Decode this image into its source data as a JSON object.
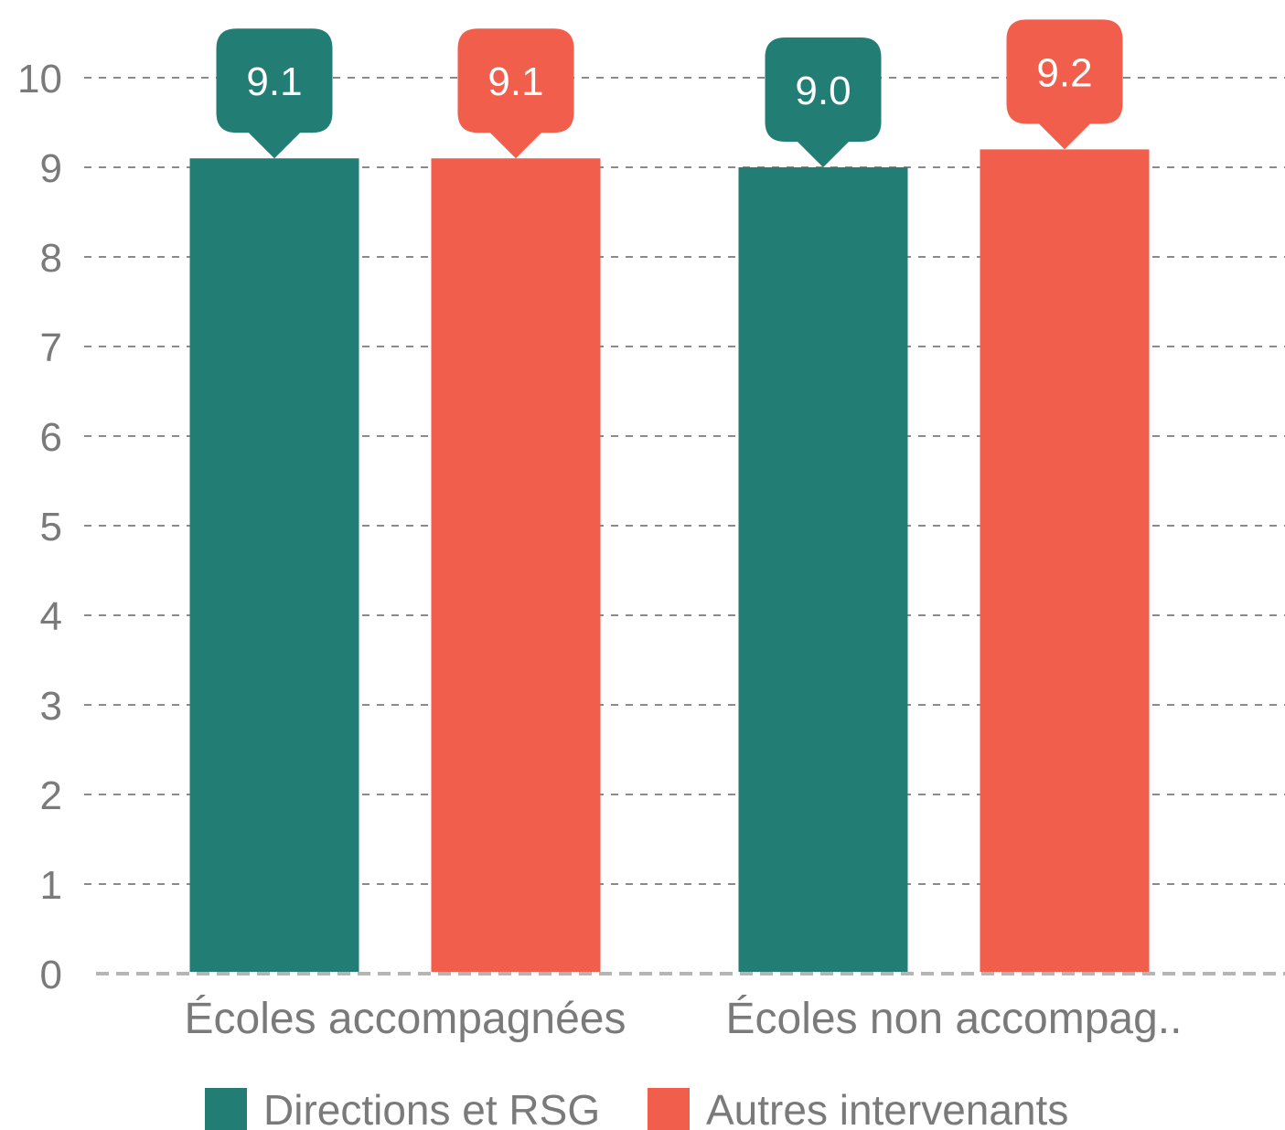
{
  "chart_data": {
    "type": "bar",
    "categories": [
      "Écoles accompagnées",
      "Écoles non accompag.."
    ],
    "series": [
      {
        "name": "Directions et RSG",
        "color": "#227e74",
        "values": [
          9.1,
          9.0
        ],
        "labels": [
          "9.1",
          "9.0"
        ]
      },
      {
        "name": "Autres intervenants",
        "color": "#f25e4c",
        "values": [
          9.1,
          9.2
        ],
        "labels": [
          "9.1",
          "9.2"
        ]
      }
    ],
    "yticks": [
      "0",
      "1",
      "2",
      "3",
      "4",
      "5",
      "6",
      "7",
      "8",
      "9",
      "10"
    ],
    "ylim": [
      0,
      10
    ],
    "grid": true,
    "legend_position": "bottom",
    "xlabel": "",
    "ylabel": "",
    "title": ""
  }
}
